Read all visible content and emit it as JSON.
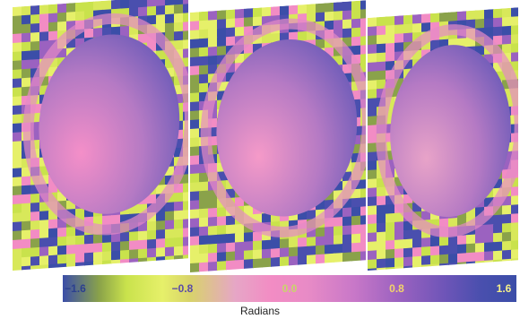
{
  "figure": {
    "panels": [
      {
        "id": "panel-1"
      },
      {
        "id": "panel-2"
      },
      {
        "id": "panel-3"
      }
    ],
    "colorbar": {
      "ticks": [
        {
          "label": "−1.6",
          "color": "#2b3f8f",
          "pos": 0
        },
        {
          "label": "−0.8",
          "color": "#5a4aa8",
          "pos": 0.25
        },
        {
          "label": "0.0",
          "color": "#c9d66a",
          "pos": 0.5
        },
        {
          "label": "0.8",
          "color": "#f2d46a",
          "pos": 0.75
        },
        {
          "label": "1.6",
          "color": "#f5f08a",
          "pos": 1
        }
      ],
      "label": "Radians"
    }
  }
}
